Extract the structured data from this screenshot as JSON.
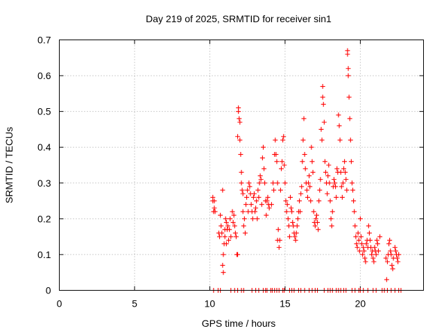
{
  "chart_data": {
    "type": "scatter",
    "title": "Day 219 of 2025, SRMTID for receiver sin1",
    "xlabel": "GPS time / hours",
    "ylabel": "SRMTID / TECUs",
    "xlim": [
      0,
      24.2
    ],
    "ylim": [
      0,
      0.7
    ],
    "xticks": [
      0,
      5,
      10,
      15,
      20
    ],
    "xtick_labels": [
      "0",
      "5",
      "10",
      "15",
      "20"
    ],
    "yticks": [
      0,
      0.1,
      0.2,
      0.3,
      0.4,
      0.5,
      0.6,
      0.7
    ],
    "ytick_labels": [
      "0",
      "0.1",
      "0.2",
      "0.3",
      "0.4",
      "0.5",
      "0.6",
      "0.7"
    ],
    "grid": true,
    "marker": "+",
    "color": "#ff0000",
    "series": [
      {
        "name": "sin1",
        "points": [
          [
            10.2,
            0.26
          ],
          [
            10.2,
            0.25
          ],
          [
            10.25,
            0.22
          ],
          [
            10.3,
            0.23
          ],
          [
            10.3,
            0.25
          ],
          [
            10.35,
            0.22
          ],
          [
            10.6,
            0.16
          ],
          [
            10.65,
            0.15
          ],
          [
            10.7,
            0.21
          ],
          [
            10.75,
            0.18
          ],
          [
            10.8,
            0.16
          ],
          [
            10.85,
            0.28
          ],
          [
            10.85,
            0.07
          ],
          [
            10.9,
            0.05
          ],
          [
            10.9,
            0.1
          ],
          [
            10.95,
            0.13
          ],
          [
            11.0,
            0.15
          ],
          [
            11.0,
            0.17
          ],
          [
            11.05,
            0.2
          ],
          [
            11.1,
            0.19
          ],
          [
            11.1,
            0.13
          ],
          [
            11.15,
            0.17
          ],
          [
            11.2,
            0.18
          ],
          [
            11.25,
            0.14
          ],
          [
            11.3,
            0.17
          ],
          [
            11.35,
            0.2
          ],
          [
            11.4,
            0.15
          ],
          [
            11.5,
            0.22
          ],
          [
            11.55,
            0.19
          ],
          [
            11.6,
            0.21
          ],
          [
            11.65,
            0.18
          ],
          [
            11.7,
            0.16
          ],
          [
            11.75,
            0.15
          ],
          [
            11.8,
            0.1
          ],
          [
            11.85,
            0.1
          ],
          [
            11.85,
            0.43
          ],
          [
            11.9,
            0.5
          ],
          [
            11.9,
            0.51
          ],
          [
            11.95,
            0.48
          ],
          [
            12.0,
            0.42
          ],
          [
            12.0,
            0.47
          ],
          [
            12.05,
            0.38
          ],
          [
            12.1,
            0.33
          ],
          [
            12.1,
            0.3
          ],
          [
            12.15,
            0.28
          ],
          [
            12.2,
            0.27
          ],
          [
            12.2,
            0.22
          ],
          [
            12.25,
            0.18
          ],
          [
            12.3,
            0.2
          ],
          [
            12.35,
            0.16
          ],
          [
            12.4,
            0.24
          ],
          [
            12.45,
            0.26
          ],
          [
            12.5,
            0.28
          ],
          [
            12.55,
            0.22
          ],
          [
            12.6,
            0.3
          ],
          [
            12.65,
            0.29
          ],
          [
            12.7,
            0.27
          ],
          [
            12.75,
            0.24
          ],
          [
            12.8,
            0.22
          ],
          [
            12.85,
            0.2
          ],
          [
            12.9,
            0.26
          ],
          [
            12.95,
            0.27
          ],
          [
            13.0,
            0.22
          ],
          [
            13.05,
            0.23
          ],
          [
            13.1,
            0.25
          ],
          [
            13.15,
            0.2
          ],
          [
            13.2,
            0.28
          ],
          [
            13.25,
            0.26
          ],
          [
            13.3,
            0.3
          ],
          [
            13.35,
            0.32
          ],
          [
            13.4,
            0.31
          ],
          [
            13.45,
            0.24
          ],
          [
            13.5,
            0.37
          ],
          [
            13.55,
            0.4
          ],
          [
            13.6,
            0.34
          ],
          [
            13.65,
            0.3
          ],
          [
            13.7,
            0.25
          ],
          [
            13.75,
            0.21
          ],
          [
            13.8,
            0.25
          ],
          [
            13.85,
            0.26
          ],
          [
            13.9,
            0.24
          ],
          [
            13.95,
            0.23
          ],
          [
            14.1,
            0.24
          ],
          [
            14.2,
            0.3
          ],
          [
            14.25,
            0.28
          ],
          [
            14.3,
            0.38
          ],
          [
            14.35,
            0.42
          ],
          [
            14.4,
            0.38
          ],
          [
            14.45,
            0.36
          ],
          [
            14.5,
            0.3
          ],
          [
            14.5,
            0.14
          ],
          [
            14.55,
            0.17
          ],
          [
            14.6,
            0.12
          ],
          [
            14.65,
            0.14
          ],
          [
            14.7,
            0.28
          ],
          [
            14.75,
            0.34
          ],
          [
            14.8,
            0.36
          ],
          [
            14.85,
            0.42
          ],
          [
            14.9,
            0.43
          ],
          [
            14.95,
            0.35
          ],
          [
            15.0,
            0.3
          ],
          [
            15.05,
            0.25
          ],
          [
            15.1,
            0.22
          ],
          [
            15.15,
            0.24
          ],
          [
            15.2,
            0.2
          ],
          [
            15.25,
            0.18
          ],
          [
            15.3,
            0.15
          ],
          [
            15.35,
            0.26
          ],
          [
            15.4,
            0.23
          ],
          [
            15.45,
            0.22
          ],
          [
            15.5,
            0.19
          ],
          [
            15.55,
            0.18
          ],
          [
            15.6,
            0.16
          ],
          [
            15.65,
            0.15
          ],
          [
            15.7,
            0.14
          ],
          [
            15.75,
            0.16
          ],
          [
            15.8,
            0.18
          ],
          [
            15.85,
            0.2
          ],
          [
            15.9,
            0.22
          ],
          [
            15.95,
            0.25
          ],
          [
            16.0,
            0.22
          ],
          [
            16.05,
            0.27
          ],
          [
            16.1,
            0.29
          ],
          [
            16.15,
            0.36
          ],
          [
            16.2,
            0.42
          ],
          [
            16.25,
            0.48
          ],
          [
            16.3,
            0.38
          ],
          [
            16.35,
            0.34
          ],
          [
            16.4,
            0.3
          ],
          [
            16.45,
            0.28
          ],
          [
            16.5,
            0.26
          ],
          [
            16.55,
            0.3
          ],
          [
            16.6,
            0.32
          ],
          [
            16.65,
            0.29
          ],
          [
            16.7,
            0.25
          ],
          [
            16.75,
            0.4
          ],
          [
            16.8,
            0.36
          ],
          [
            16.85,
            0.33
          ],
          [
            16.9,
            0.22
          ],
          [
            16.95,
            0.19
          ],
          [
            17.0,
            0.18
          ],
          [
            17.05,
            0.2
          ],
          [
            17.1,
            0.21
          ],
          [
            17.15,
            0.19
          ],
          [
            17.2,
            0.17
          ],
          [
            17.25,
            0.25
          ],
          [
            17.3,
            0.28
          ],
          [
            17.35,
            0.31
          ],
          [
            17.4,
            0.45
          ],
          [
            17.45,
            0.42
          ],
          [
            17.5,
            0.54
          ],
          [
            17.5,
            0.57
          ],
          [
            17.55,
            0.52
          ],
          [
            17.6,
            0.47
          ],
          [
            17.65,
            0.36
          ],
          [
            17.7,
            0.33
          ],
          [
            17.75,
            0.3
          ],
          [
            17.8,
            0.27
          ],
          [
            17.85,
            0.32
          ],
          [
            17.9,
            0.35
          ],
          [
            17.95,
            0.3
          ],
          [
            18.0,
            0.25
          ],
          [
            18.05,
            0.2
          ],
          [
            18.1,
            0.18
          ],
          [
            18.15,
            0.22
          ],
          [
            18.2,
            0.29
          ],
          [
            18.25,
            0.31
          ],
          [
            18.3,
            0.3
          ],
          [
            18.35,
            0.29
          ],
          [
            18.4,
            0.26
          ],
          [
            18.45,
            0.34
          ],
          [
            18.5,
            0.33
          ],
          [
            18.55,
            0.49
          ],
          [
            18.6,
            0.46
          ],
          [
            18.65,
            0.42
          ],
          [
            18.7,
            0.33
          ],
          [
            18.75,
            0.29
          ],
          [
            18.8,
            0.26
          ],
          [
            18.85,
            0.3
          ],
          [
            18.9,
            0.34
          ],
          [
            18.95,
            0.36
          ],
          [
            19.0,
            0.33
          ],
          [
            19.05,
            0.31
          ],
          [
            19.1,
            0.28
          ],
          [
            19.15,
            0.66
          ],
          [
            19.15,
            0.67
          ],
          [
            19.2,
            0.62
          ],
          [
            19.2,
            0.6
          ],
          [
            19.25,
            0.54
          ],
          [
            19.3,
            0.48
          ],
          [
            19.35,
            0.42
          ],
          [
            19.4,
            0.36
          ],
          [
            19.45,
            0.3
          ],
          [
            19.5,
            0.28
          ],
          [
            19.55,
            0.25
          ],
          [
            19.6,
            0.22
          ],
          [
            19.65,
            0.18
          ],
          [
            19.7,
            0.15
          ],
          [
            19.75,
            0.13
          ],
          [
            19.8,
            0.12
          ],
          [
            19.85,
            0.16
          ],
          [
            19.9,
            0.14
          ],
          [
            19.95,
            0.11
          ],
          [
            20.0,
            0.2
          ],
          [
            20.05,
            0.15
          ],
          [
            20.1,
            0.13
          ],
          [
            20.15,
            0.1
          ],
          [
            20.2,
            0.12
          ],
          [
            20.25,
            0.11
          ],
          [
            20.3,
            0.09
          ],
          [
            20.35,
            0.08
          ],
          [
            20.4,
            0.13
          ],
          [
            20.45,
            0.14
          ],
          [
            20.5,
            0.12
          ],
          [
            20.55,
            0.18
          ],
          [
            20.6,
            0.16
          ],
          [
            20.65,
            0.14
          ],
          [
            20.7,
            0.12
          ],
          [
            20.75,
            0.1
          ],
          [
            20.8,
            0.11
          ],
          [
            20.85,
            0.09
          ],
          [
            20.9,
            0.08
          ],
          [
            20.95,
            0.12
          ],
          [
            21.0,
            0.11
          ],
          [
            21.05,
            0.1
          ],
          [
            21.1,
            0.14
          ],
          [
            21.15,
            0.13
          ],
          [
            21.2,
            0.11
          ],
          [
            21.3,
            0.15
          ],
          [
            21.7,
            0.09
          ],
          [
            21.75,
            0.03
          ],
          [
            21.8,
            0.08
          ],
          [
            21.85,
            0.1
          ],
          [
            21.9,
            0.13
          ],
          [
            21.95,
            0.14
          ],
          [
            22.0,
            0.11
          ],
          [
            22.05,
            0.1
          ],
          [
            22.1,
            0.07
          ],
          [
            22.15,
            0.06
          ],
          [
            22.2,
            0.09
          ],
          [
            22.3,
            0.12
          ],
          [
            22.35,
            0.11
          ],
          [
            22.4,
            0.1
          ],
          [
            22.45,
            0.09
          ],
          [
            22.5,
            0.08
          ],
          [
            22.55,
            0.1
          ],
          [
            10.25,
            0.0
          ],
          [
            10.55,
            0.0
          ],
          [
            10.7,
            0.0
          ],
          [
            11.4,
            0.0
          ],
          [
            11.65,
            0.0
          ],
          [
            11.85,
            0.0
          ],
          [
            12.1,
            0.0
          ],
          [
            12.25,
            0.0
          ],
          [
            12.8,
            0.0
          ],
          [
            13.05,
            0.0
          ],
          [
            13.25,
            0.0
          ],
          [
            13.55,
            0.0
          ],
          [
            13.7,
            0.0
          ],
          [
            13.8,
            0.0
          ],
          [
            14.05,
            0.0
          ],
          [
            14.15,
            0.0
          ],
          [
            14.3,
            0.0
          ],
          [
            14.45,
            0.0
          ],
          [
            14.6,
            0.0
          ],
          [
            14.85,
            0.0
          ],
          [
            14.95,
            0.0
          ],
          [
            15.3,
            0.0
          ],
          [
            15.45,
            0.0
          ],
          [
            15.6,
            0.0
          ],
          [
            15.9,
            0.0
          ],
          [
            16.05,
            0.0
          ],
          [
            16.3,
            0.0
          ],
          [
            16.6,
            0.0
          ],
          [
            16.8,
            0.0
          ],
          [
            17.0,
            0.0
          ],
          [
            17.15,
            0.0
          ],
          [
            17.6,
            0.0
          ],
          [
            17.85,
            0.0
          ],
          [
            18.0,
            0.0
          ],
          [
            18.15,
            0.0
          ],
          [
            18.4,
            0.0
          ],
          [
            18.55,
            0.0
          ],
          [
            18.7,
            0.0
          ],
          [
            18.9,
            0.0
          ],
          [
            19.05,
            0.0
          ],
          [
            19.45,
            0.0
          ],
          [
            19.65,
            0.0
          ],
          [
            19.9,
            0.0
          ],
          [
            20.0,
            0.0
          ],
          [
            20.2,
            0.0
          ],
          [
            20.5,
            0.0
          ],
          [
            20.85,
            0.0
          ],
          [
            21.05,
            0.0
          ],
          [
            21.45,
            0.0
          ],
          [
            21.6,
            0.0
          ],
          [
            21.8,
            0.0
          ],
          [
            22.05,
            0.0
          ],
          [
            22.3,
            0.0
          ],
          [
            22.55,
            0.0
          ],
          [
            22.7,
            0.0
          ]
        ]
      }
    ]
  }
}
